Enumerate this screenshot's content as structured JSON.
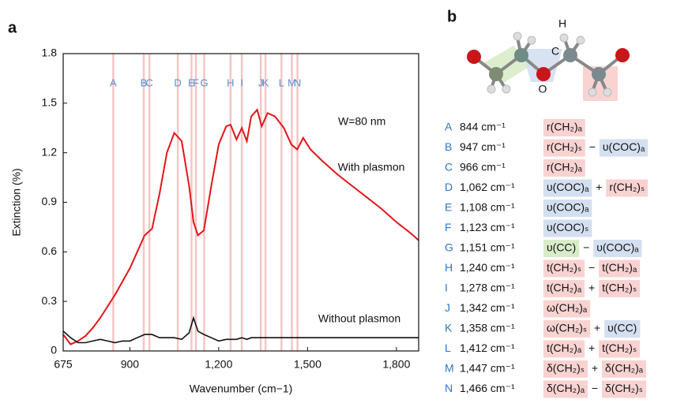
{
  "panel_labels": [
    "a",
    "b"
  ],
  "chart_data": {
    "type": "line",
    "x_label": "Wavenumber (cm−1)",
    "y_label": "Extinction (%)",
    "annotation": "W=80 nm",
    "x": [
      675,
      700,
      725,
      750,
      775,
      800,
      825,
      850,
      875,
      900,
      925,
      950,
      975,
      1000,
      1025,
      1050,
      1075,
      1100,
      1115,
      1130,
      1150,
      1175,
      1200,
      1225,
      1240,
      1260,
      1278,
      1295,
      1310,
      1330,
      1345,
      1365,
      1390,
      1420,
      1445,
      1465,
      1485,
      1510,
      1550,
      1600,
      1650,
      1700,
      1750,
      1800,
      1850,
      1875
    ],
    "series": [
      {
        "name": "With plasmon",
        "color": "#e3161b",
        "values": [
          0.1,
          0.04,
          0.06,
          0.09,
          0.14,
          0.2,
          0.27,
          0.34,
          0.42,
          0.5,
          0.6,
          0.7,
          0.74,
          0.95,
          1.2,
          1.32,
          1.27,
          1.0,
          0.78,
          0.7,
          0.73,
          1.0,
          1.25,
          1.36,
          1.37,
          1.28,
          1.35,
          1.27,
          1.42,
          1.46,
          1.36,
          1.44,
          1.42,
          1.35,
          1.25,
          1.22,
          1.29,
          1.22,
          1.15,
          1.07,
          1.0,
          0.93,
          0.86,
          0.78,
          0.71,
          0.67
        ]
      },
      {
        "name": "Without plasmon",
        "color": "#111111",
        "values": [
          0.12,
          0.08,
          0.05,
          0.05,
          0.06,
          0.07,
          0.06,
          0.05,
          0.06,
          0.06,
          0.08,
          0.1,
          0.1,
          0.08,
          0.08,
          0.08,
          0.07,
          0.11,
          0.2,
          0.12,
          0.1,
          0.08,
          0.06,
          0.07,
          0.07,
          0.07,
          0.08,
          0.07,
          0.08,
          0.08,
          0.08,
          0.08,
          0.08,
          0.08,
          0.08,
          0.08,
          0.08,
          0.08,
          0.08,
          0.08,
          0.08,
          0.08,
          0.08,
          0.08,
          0.08,
          0.08
        ]
      }
    ],
    "reference_lines": {
      "color": "#f5c6c4",
      "label_color": "#5b8ed2",
      "labels": [
        "A",
        "B",
        "C",
        "D",
        "E",
        "F",
        "G",
        "H",
        "I",
        "J",
        "K",
        "L",
        "M",
        "N"
      ],
      "x": [
        844,
        947,
        966,
        1062,
        1108,
        1123,
        1151,
        1240,
        1278,
        1342,
        1358,
        1412,
        1447,
        1466
      ]
    },
    "xlim": [
      675,
      1875
    ],
    "xticks": [
      675,
      900,
      {
        "value": 1200,
        "label": "1,200"
      },
      {
        "value": 1500,
        "label": "1,500"
      },
      {
        "value": 1800,
        "label": "1,800"
      }
    ],
    "ylim": [
      0,
      1.8
    ],
    "yticks": [
      0,
      0.3,
      0.6,
      0.9,
      1.2,
      1.5,
      1.8
    ]
  },
  "molecule": {
    "labels": [
      "H",
      "C",
      "O"
    ]
  },
  "assignments": {
    "rows": [
      {
        "label": "A",
        "wavenumber": "844 cm⁻¹",
        "terms": [
          {
            "text": "r(CH₂)ₐ",
            "color": "#f8d3d2"
          }
        ]
      },
      {
        "label": "B",
        "wavenumber": "947 cm⁻¹",
        "terms": [
          {
            "text": "r(CH₂)ₛ",
            "color": "#f8d3d2"
          },
          {
            "text": "υ(COC)ₐ",
            "color": "#d4dff0"
          }
        ],
        "operator": "−"
      },
      {
        "label": "C",
        "wavenumber": "966 cm⁻¹",
        "terms": [
          {
            "text": "r(CH₂)ₐ",
            "color": "#f8d3d2"
          }
        ]
      },
      {
        "label": "D",
        "wavenumber": "1,062 cm⁻¹",
        "terms": [
          {
            "text": "υ(COC)ₐ",
            "color": "#d4dff0"
          },
          {
            "text": "r(CH₂)ₛ",
            "color": "#f8d3d2"
          }
        ],
        "operator": "+"
      },
      {
        "label": "E",
        "wavenumber": "1,108 cm⁻¹",
        "terms": [
          {
            "text": "υ(COC)ₐ",
            "color": "#d4dff0"
          }
        ]
      },
      {
        "label": "F",
        "wavenumber": "1,123 cm⁻¹",
        "terms": [
          {
            "text": "υ(COC)ₛ",
            "color": "#d4dff0"
          }
        ]
      },
      {
        "label": "G",
        "wavenumber": "1,151 cm⁻¹",
        "terms": [
          {
            "text": "υ(CC)",
            "color": "#d9ecc9"
          },
          {
            "text": "υ(COC)ₐ",
            "color": "#d4dff0"
          }
        ],
        "operator": "−"
      },
      {
        "label": "H",
        "wavenumber": "1,240 cm⁻¹",
        "terms": [
          {
            "text": "t(CH₂)ₛ",
            "color": "#f8d3d2"
          },
          {
            "text": "t(CH₂)ₐ",
            "color": "#f8d3d2"
          }
        ],
        "operator": "−"
      },
      {
        "label": "I",
        "wavenumber": "1,278 cm⁻¹",
        "terms": [
          {
            "text": "t(CH₂)ₐ",
            "color": "#f8d3d2"
          },
          {
            "text": "t(CH₂)ₛ",
            "color": "#f8d3d2"
          }
        ],
        "operator": "+"
      },
      {
        "label": "J",
        "wavenumber": "1,342 cm⁻¹",
        "terms": [
          {
            "text": "ω(CH₂)ₐ",
            "color": "#f8d3d2"
          }
        ]
      },
      {
        "label": "K",
        "wavenumber": "1,358 cm⁻¹",
        "terms": [
          {
            "text": "ω(CH₂)ₛ",
            "color": "#f8d3d2"
          },
          {
            "text": "υ(CC)",
            "color": "#d4dff0"
          }
        ],
        "operator": "+"
      },
      {
        "label": "L",
        "wavenumber": "1,412 cm⁻¹",
        "terms": [
          {
            "text": "t(CH₂)ₐ",
            "color": "#f8d3d2"
          },
          {
            "text": "t(CH₂)ₛ",
            "color": "#f8d3d2"
          }
        ],
        "operator": "+"
      },
      {
        "label": "M",
        "wavenumber": "1,447 cm⁻¹",
        "terms": [
          {
            "text": "δ(CH₂)ₛ",
            "color": "#f8d3d2"
          },
          {
            "text": "δ(CH₂)ₐ",
            "color": "#f8d3d2"
          }
        ],
        "operator": "+"
      },
      {
        "label": "N",
        "wavenumber": "1,466 cm⁻¹",
        "terms": [
          {
            "text": "δ(CH₂)ₐ",
            "color": "#f8d3d2"
          },
          {
            "text": "δ(CH₂)ₛ",
            "color": "#f8d3d2"
          }
        ],
        "operator": "−"
      }
    ]
  }
}
